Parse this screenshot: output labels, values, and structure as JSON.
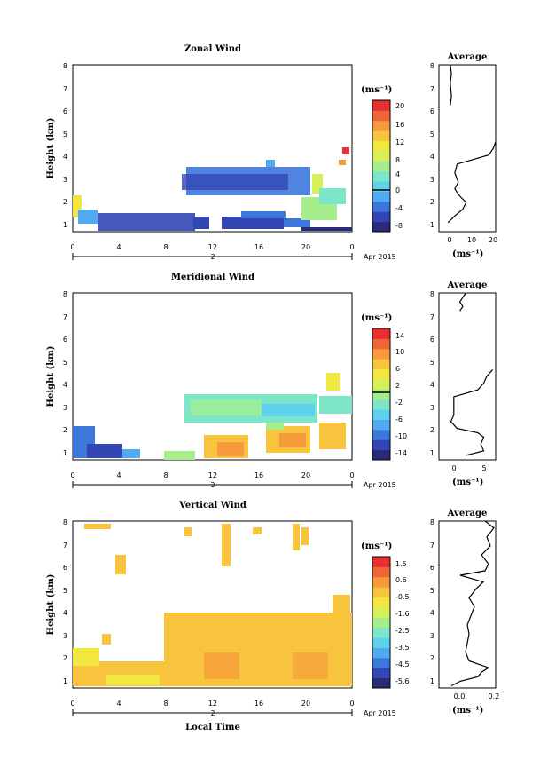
{
  "chart_data": [
    {
      "type": "heatmap",
      "title": "Zonal Wind",
      "ylabel": "Height (km)",
      "x_ticks": [
        "0",
        "4",
        "8",
        "12",
        "16",
        "20",
        "0"
      ],
      "y_ticks": [
        "1",
        "2",
        "3",
        "4",
        "5",
        "6",
        "7",
        "8"
      ],
      "ylim": [
        0.6,
        8
      ],
      "date_mark": "2",
      "date_label": "Apr 2015",
      "colorbar": {
        "unit": "(ms⁻¹)",
        "ticks": [
          "20",
          "16",
          "12",
          "8",
          "4",
          "0",
          "-4",
          "-8"
        ],
        "colors": [
          "#2a2c78",
          "#3246b4",
          "#3c78dc",
          "#50aaf0",
          "#5ed2ec",
          "#7ee6c8",
          "#a6ee8c",
          "#d6f05a",
          "#f2e640",
          "#f8c43e",
          "#f69a3c",
          "#f0643a",
          "#e83030"
        ]
      },
      "average": {
        "title": "Average",
        "xlabel": "(ms⁻¹)",
        "x_ticks": [
          "0",
          "10",
          "20"
        ],
        "xlim": [
          -3,
          22
        ],
        "profile": [
          [
            1.0,
            1
          ],
          [
            1.3,
            4
          ],
          [
            1.6,
            7.5
          ],
          [
            1.9,
            9
          ],
          [
            2.2,
            6
          ],
          [
            2.5,
            4
          ],
          [
            2.8,
            5.5
          ],
          [
            3.2,
            4
          ],
          [
            3.6,
            5
          ],
          [
            4.0,
            19
          ],
          [
            4.3,
            21
          ],
          [
            4.6,
            22
          ]
        ],
        "upper": [
          [
            6.2,
            2
          ],
          [
            6.6,
            2.5
          ],
          [
            7.2,
            2
          ],
          [
            7.6,
            2.5
          ],
          [
            8.0,
            2
          ]
        ]
      }
    },
    {
      "type": "heatmap",
      "title": "Meridional Wind",
      "ylabel": "Height (km)",
      "x_ticks": [
        "0",
        "4",
        "8",
        "12",
        "16",
        "20",
        "0"
      ],
      "y_ticks": [
        "1",
        "2",
        "3",
        "4",
        "5",
        "6",
        "7",
        "8"
      ],
      "ylim": [
        0.6,
        8
      ],
      "date_mark": "2",
      "date_label": "Apr 2015",
      "colorbar": {
        "unit": "(ms⁻¹)",
        "ticks": [
          "14",
          "10",
          "6",
          "2",
          "-2",
          "-6",
          "-10",
          "-14"
        ],
        "colors": [
          "#2a2c78",
          "#3246b4",
          "#3c78dc",
          "#50aaf0",
          "#5ed2ec",
          "#7ee6c8",
          "#a6ee8c",
          "#d6f05a",
          "#f2e640",
          "#f8c43e",
          "#f69a3c",
          "#f0643a",
          "#e83030"
        ]
      },
      "average": {
        "title": "Average",
        "xlabel": "(ms⁻¹)",
        "x_ticks": [
          "0",
          "5"
        ],
        "xlim": [
          -2.5,
          7
        ],
        "profile": [
          [
            0.8,
            2
          ],
          [
            1.0,
            5
          ],
          [
            1.3,
            4.5
          ],
          [
            1.6,
            5
          ],
          [
            1.8,
            4
          ],
          [
            2.0,
            0.5
          ],
          [
            2.3,
            -0.5
          ],
          [
            2.6,
            0
          ],
          [
            3.0,
            0
          ],
          [
            3.4,
            0
          ],
          [
            3.7,
            4
          ],
          [
            4.0,
            5
          ],
          [
            4.3,
            5.5
          ],
          [
            4.6,
            6.5
          ]
        ],
        "upper": [
          [
            7.2,
            1
          ],
          [
            7.4,
            1.5
          ],
          [
            7.6,
            1
          ],
          [
            7.8,
            1.5
          ],
          [
            8.0,
            2
          ]
        ]
      }
    },
    {
      "type": "heatmap",
      "title": "Vertical Wind",
      "ylabel": "Height (km)",
      "xlabel": "Local Time",
      "x_ticks": [
        "0",
        "4",
        "8",
        "12",
        "16",
        "20",
        "0"
      ],
      "y_ticks": [
        "1",
        "2",
        "3",
        "4",
        "5",
        "6",
        "7",
        "8"
      ],
      "ylim": [
        0.6,
        8
      ],
      "date_mark": "2",
      "date_label": "Apr 2015",
      "colorbar": {
        "unit": "(ms⁻¹)",
        "ticks": [
          "1.5",
          "0.6",
          "-0.5",
          "-1.6",
          "-2.5",
          "-3.5",
          "-4.5",
          "-5.6"
        ],
        "colors": [
          "#2a2c78",
          "#3246b4",
          "#3c78dc",
          "#50aaf0",
          "#5ed2ec",
          "#7ee6c8",
          "#a6ee8c",
          "#d6f05a",
          "#f2e640",
          "#f8c43e",
          "#f69a3c",
          "#f0643a",
          "#e83030"
        ]
      },
      "average": {
        "title": "Average",
        "xlabel": "(ms⁻¹)",
        "x_ticks": [
          "0.0",
          "0.2"
        ],
        "xlim": [
          -0.12,
          0.2
        ],
        "profile": [
          [
            0.7,
            -0.05
          ],
          [
            0.9,
            0.0
          ],
          [
            1.1,
            0.1
          ],
          [
            1.3,
            0.12
          ],
          [
            1.5,
            0.16
          ],
          [
            1.8,
            0.05
          ],
          [
            2.2,
            0.03
          ],
          [
            2.6,
            0.04
          ],
          [
            3.0,
            0.05
          ],
          [
            3.4,
            0.04
          ],
          [
            3.8,
            0.06
          ],
          [
            4.2,
            0.08
          ],
          [
            4.6,
            0.05
          ],
          [
            5.0,
            0.09
          ],
          [
            5.3,
            0.13
          ],
          [
            5.6,
            0.0
          ],
          [
            5.8,
            0.14
          ],
          [
            6.1,
            0.16
          ],
          [
            6.5,
            0.12
          ],
          [
            6.9,
            0.17
          ],
          [
            7.3,
            0.15
          ],
          [
            7.7,
            0.19
          ],
          [
            8.0,
            0.14
          ]
        ]
      }
    }
  ]
}
